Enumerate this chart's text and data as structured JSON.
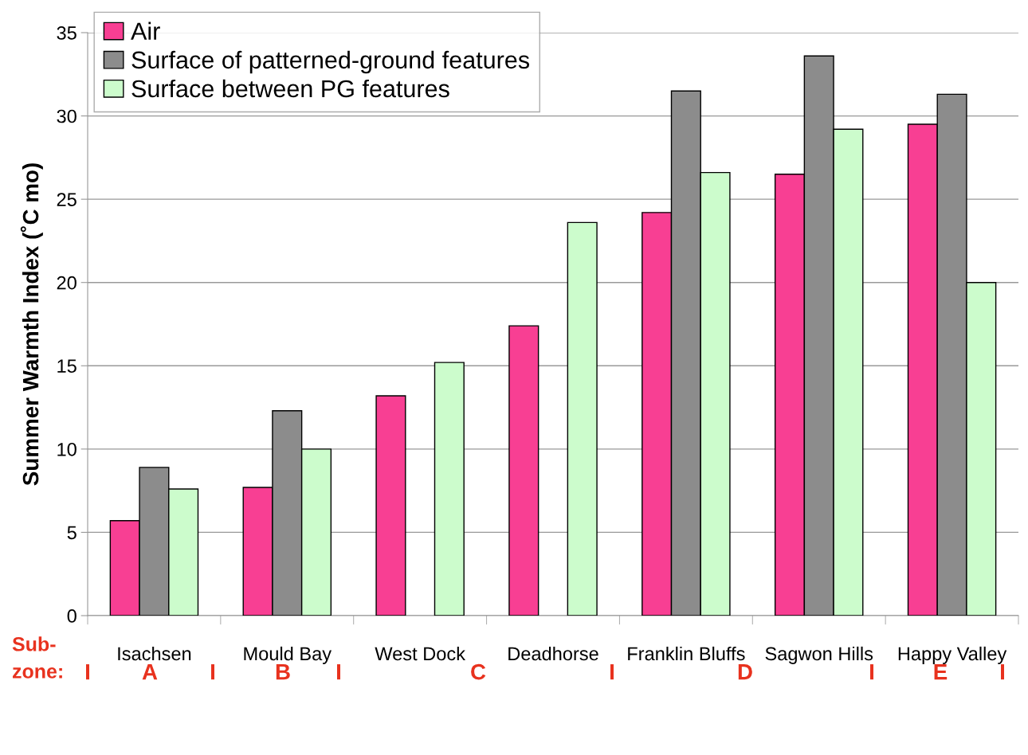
{
  "chart_data": {
    "type": "bar",
    "ylabel": "Summer Warmth Index (˚C mo)",
    "categories": [
      "Isachsen",
      "Mould Bay",
      "West Dock",
      "Deadhorse",
      "Franklin Bluffs",
      "Sagwon Hills",
      "Happy Valley"
    ],
    "series": [
      {
        "name": "Air",
        "color": "#f83f93",
        "values": [
          5.7,
          7.7,
          13.2,
          17.4,
          24.2,
          26.5,
          29.5
        ]
      },
      {
        "name": "Surface of patterned-ground features",
        "color": "#8c8c8c",
        "values": [
          8.9,
          12.3,
          null,
          null,
          31.5,
          33.6,
          31.3
        ]
      },
      {
        "name": "Surface between PG features",
        "color": "#ccfccc",
        "values": [
          7.6,
          10.0,
          15.2,
          23.6,
          26.6,
          29.2,
          20.0
        ]
      }
    ],
    "ylim": [
      0,
      35
    ],
    "yticks": [
      0,
      5,
      10,
      15,
      20,
      25,
      30,
      35
    ],
    "grid": "y",
    "legend": "top left",
    "annotations": [
      "Sub-\nzone:",
      "I",
      "A",
      "I",
      "B",
      "I",
      "C",
      "I",
      "D",
      "I",
      "E",
      "I"
    ]
  }
}
